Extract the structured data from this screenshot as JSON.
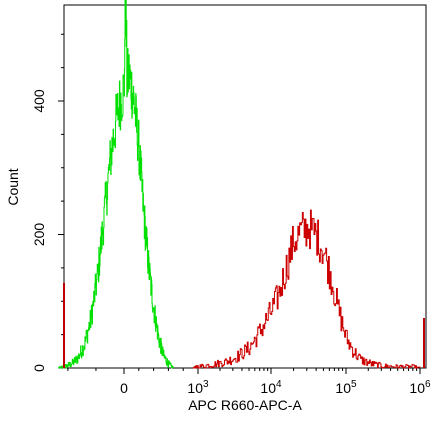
{
  "chart_data": {
    "type": "histogram",
    "xlabel": "APC R660-APC-A",
    "ylabel": "Count",
    "grid": false,
    "legend": "none",
    "y_range": [
      0,
      560
    ],
    "y_ticks": [
      {
        "value": 0,
        "label": "0"
      },
      {
        "value": 200,
        "label": "200"
      },
      {
        "value": 400,
        "label": "400"
      }
    ],
    "x_scale": "biexponential",
    "x_ticks": [
      {
        "value": 0,
        "base": "0",
        "exp": ""
      },
      {
        "value": 1000,
        "base": "10",
        "exp": "3"
      },
      {
        "value": 10000,
        "base": "10",
        "exp": "4"
      },
      {
        "value": 100000,
        "base": "10",
        "exp": "5"
      },
      {
        "value": 1000000,
        "base": "10",
        "exp": "6"
      }
    ],
    "series": [
      {
        "color": "#00e000",
        "points": [
          [
            -2.0,
            0
          ],
          [
            -1.8,
            2
          ],
          [
            -1.6,
            6
          ],
          [
            -1.4,
            15
          ],
          [
            -1.2,
            35
          ],
          [
            -1.0,
            75
          ],
          [
            -0.8,
            140
          ],
          [
            -0.6,
            230
          ],
          [
            -0.4,
            320
          ],
          [
            -0.2,
            385
          ],
          [
            0.0,
            420
          ],
          [
            0.2,
            440
          ],
          [
            0.4,
            400
          ],
          [
            0.6,
            330
          ],
          [
            0.8,
            230
          ],
          [
            1.0,
            150
          ],
          [
            1.2,
            90
          ],
          [
            1.4,
            45
          ],
          [
            1.6,
            18
          ],
          [
            1.8,
            6
          ],
          [
            2.0,
            0
          ]
        ],
        "peak": [
          0.06,
          550
        ]
      },
      {
        "color": "#cc0000",
        "points": [
          [
            2.8,
            0
          ],
          [
            3.0,
            2
          ],
          [
            3.2,
            5
          ],
          [
            3.4,
            10
          ],
          [
            3.55,
            18
          ],
          [
            3.7,
            30
          ],
          [
            3.85,
            55
          ],
          [
            4.0,
            85
          ],
          [
            4.1,
            110
          ],
          [
            4.2,
            150
          ],
          [
            4.3,
            190
          ],
          [
            4.4,
            205
          ],
          [
            4.5,
            210
          ],
          [
            4.6,
            200
          ],
          [
            4.7,
            175
          ],
          [
            4.8,
            135
          ],
          [
            4.9,
            85
          ],
          [
            5.0,
            45
          ],
          [
            5.1,
            25
          ],
          [
            5.2,
            12
          ],
          [
            5.35,
            6
          ],
          [
            5.5,
            3
          ],
          [
            5.7,
            2
          ],
          [
            5.9,
            2
          ],
          [
            6.0,
            0
          ]
        ],
        "peak": [
          4.5,
          215
        ]
      }
    ]
  }
}
